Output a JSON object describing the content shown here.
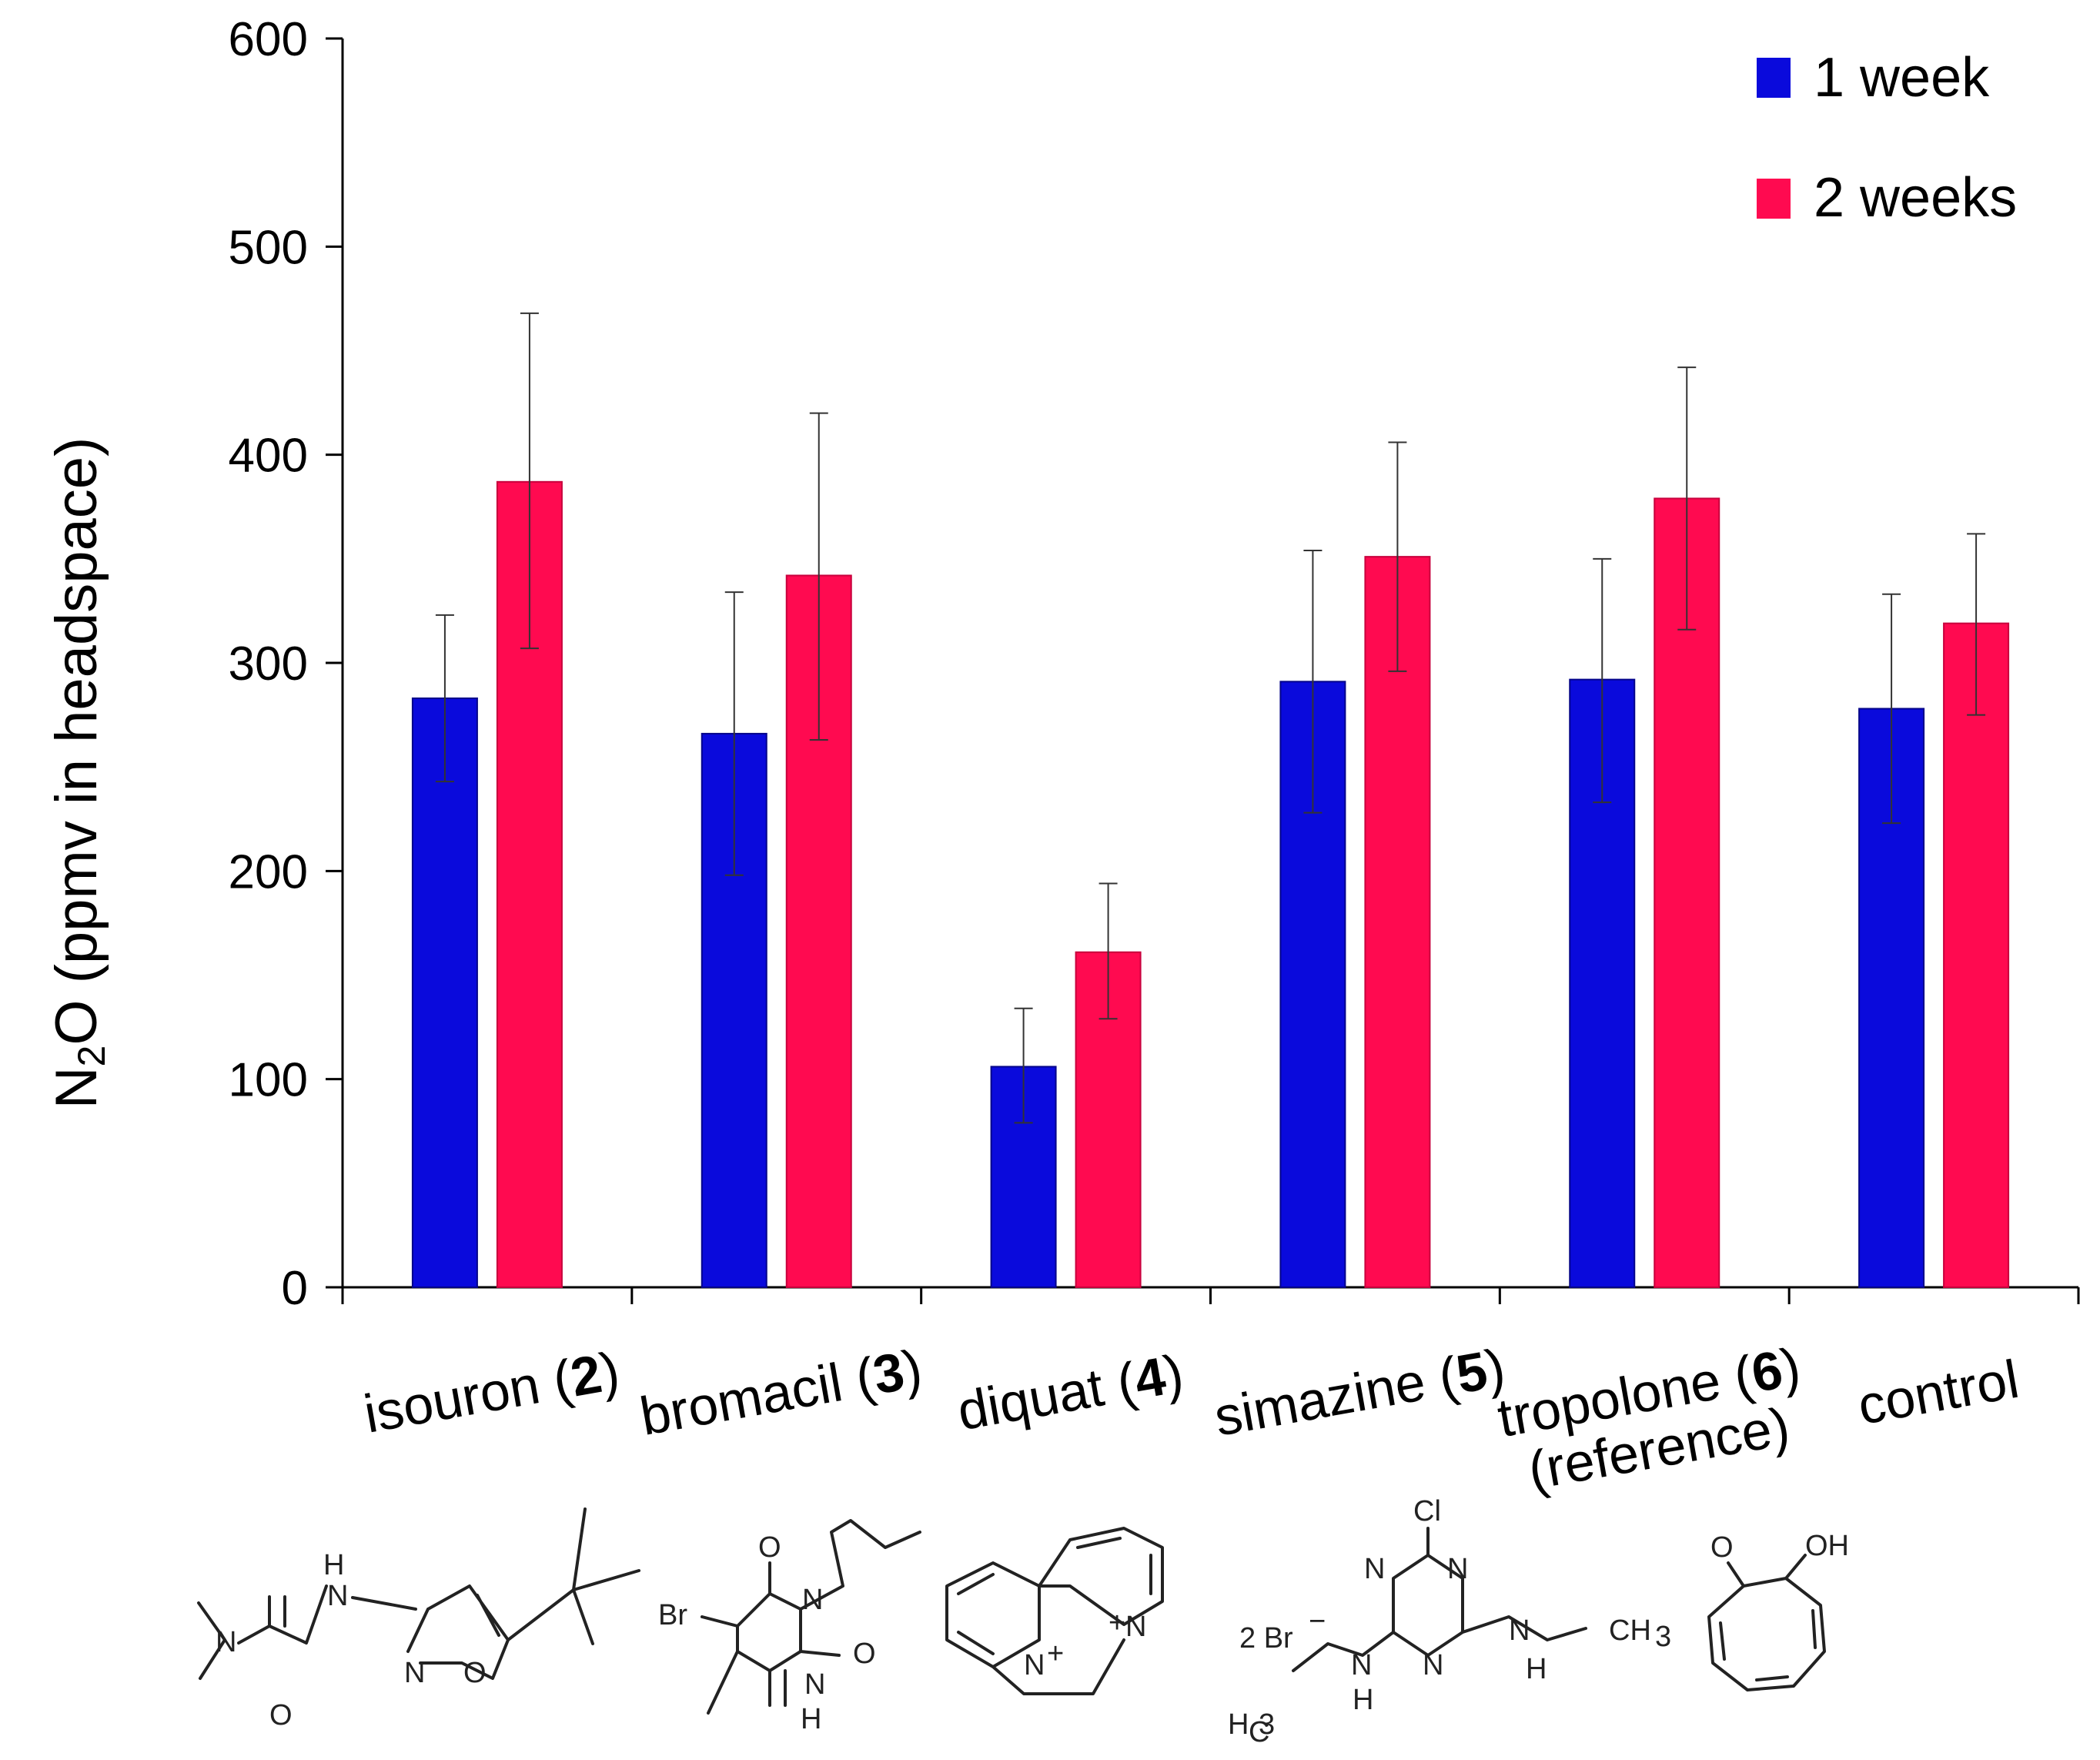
{
  "chart_data": {
    "type": "bar",
    "title": "",
    "ylabel": "N2O (ppmv in headspace)",
    "ylabel_parts": {
      "main1": "N",
      "sub": "2",
      "main2": "O (ppmv in headspace)"
    },
    "xlabel": "",
    "ylim": [
      0,
      600
    ],
    "yticks": [
      0,
      100,
      200,
      300,
      400,
      500,
      600
    ],
    "categories": [
      {
        "lines": [
          {
            "text": "isouron (",
            "bold": "2",
            "after": ")"
          }
        ]
      },
      {
        "lines": [
          {
            "text": "bromacil (",
            "bold": "3",
            "after": ")"
          }
        ]
      },
      {
        "lines": [
          {
            "text": "diquat (",
            "bold": "4",
            "after": ")"
          }
        ]
      },
      {
        "lines": [
          {
            "text": "simazine (",
            "bold": "5",
            "after": ")"
          }
        ]
      },
      {
        "lines": [
          {
            "text": "tropolone (",
            "bold": "6",
            "after": ")"
          },
          {
            "text": "(reference)",
            "bold": "",
            "after": ""
          }
        ]
      },
      {
        "lines": [
          {
            "text": "control",
            "bold": "",
            "after": ""
          }
        ]
      }
    ],
    "series": [
      {
        "name": "1 week",
        "color": "#0a0adc",
        "values": [
          283,
          266,
          106,
          291,
          292,
          278
        ],
        "err_low": [
          243,
          198,
          79,
          228,
          233,
          223
        ],
        "err_high": [
          323,
          334,
          134,
          354,
          350,
          333
        ]
      },
      {
        "name": "2 weeks",
        "color": "#ff0a50",
        "values": [
          387,
          342,
          161,
          351,
          379,
          319
        ],
        "err_low": [
          307,
          263,
          129,
          296,
          316,
          275
        ],
        "err_high": [
          468,
          420,
          194,
          406,
          442,
          362
        ]
      }
    ],
    "legend_position": "top-right",
    "structure_labels": {
      "isouron": [
        "H",
        "N",
        "N",
        "O",
        "N",
        "O"
      ],
      "bromacil": [
        "O",
        "Br",
        "N",
        "O",
        "N",
        "H"
      ],
      "diquat": [
        "N",
        "+",
        "+",
        "N"
      ],
      "simazine": [
        "Cl",
        "N",
        "N",
        "N",
        "N",
        "H",
        "CH",
        "3",
        "2 Br",
        "−",
        "H",
        "C",
        "3",
        "N",
        "H"
      ],
      "tropolone": [
        "O",
        "OH"
      ]
    }
  }
}
